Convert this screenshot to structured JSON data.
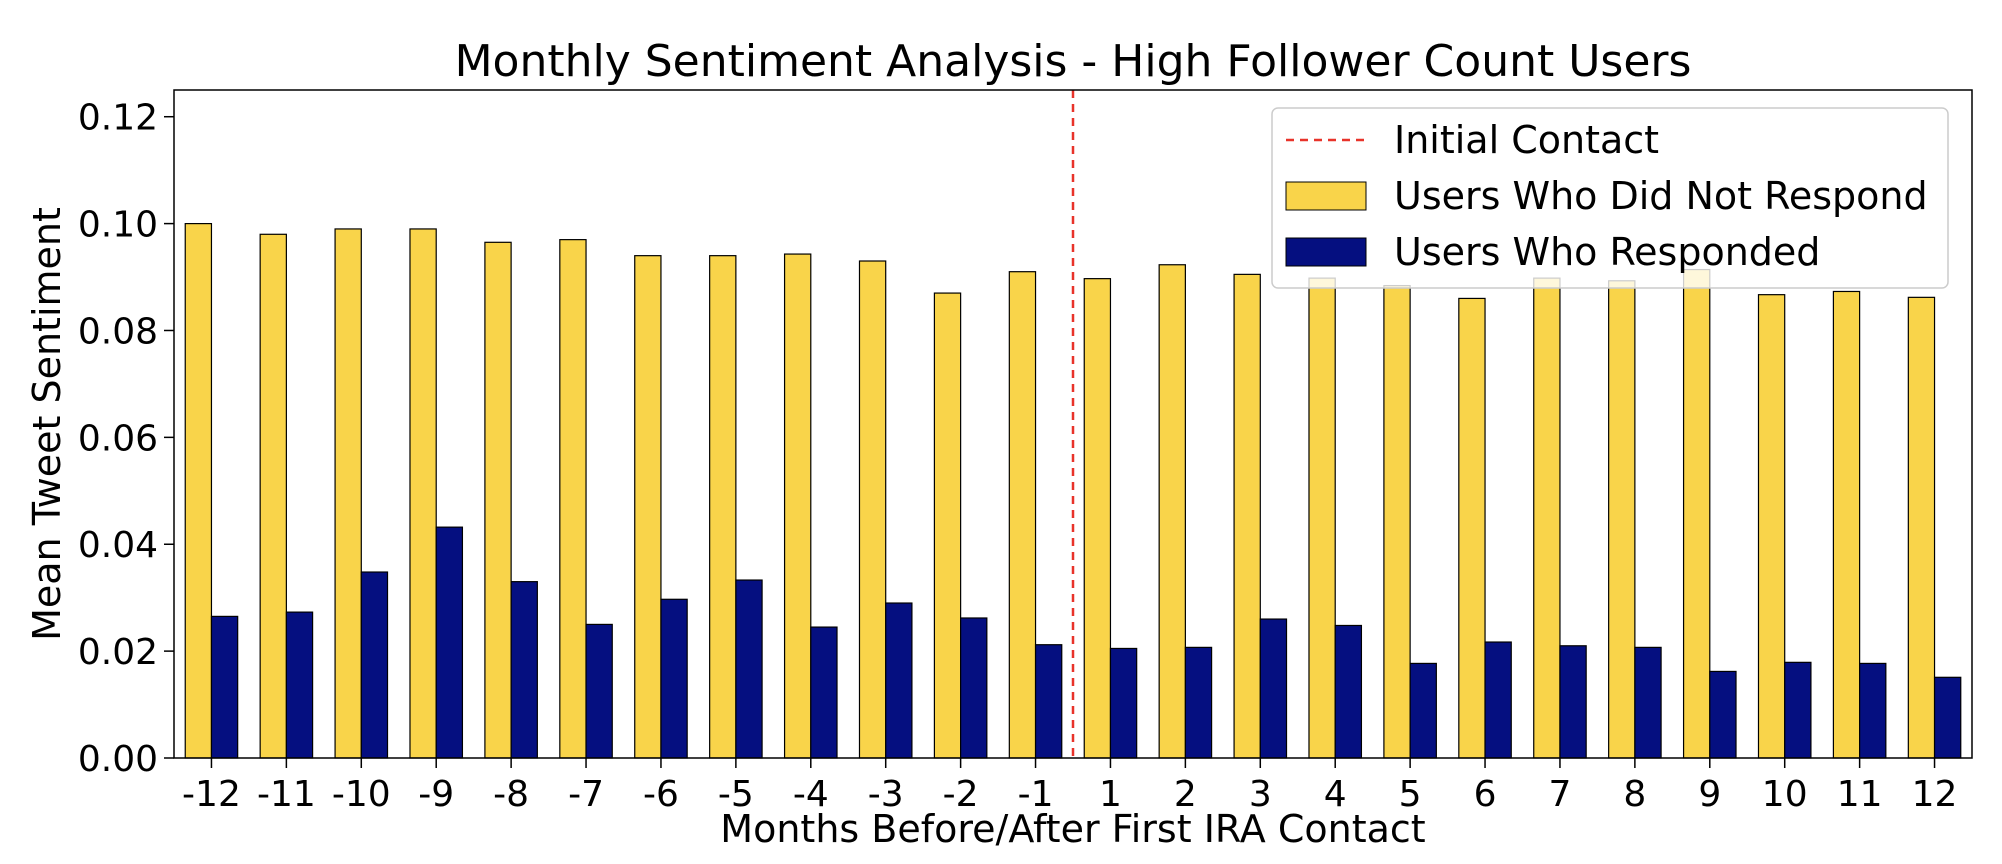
{
  "chart_data": {
    "type": "bar",
    "title": "Monthly Sentiment Analysis - High Follower Count Users",
    "xlabel": "Months Before/After First IRA Contact",
    "ylabel": "Mean Tweet Sentiment",
    "ylim": [
      0,
      0.125
    ],
    "yticks": [
      "0.00",
      "0.02",
      "0.04",
      "0.06",
      "0.08",
      "0.10",
      "0.12"
    ],
    "ytick_values": [
      0,
      0.02,
      0.04,
      0.06,
      0.08,
      0.1,
      0.12
    ],
    "categories": [
      "-12",
      "-11",
      "-10",
      "-9",
      "-8",
      "-7",
      "-6",
      "-5",
      "-4",
      "-3",
      "-2",
      "-1",
      "1",
      "2",
      "3",
      "4",
      "5",
      "6",
      "7",
      "8",
      "9",
      "10",
      "11",
      "12"
    ],
    "series": [
      {
        "name": "Users Who Did Not Respond",
        "color": "#f9d44a",
        "values": [
          0.1,
          0.098,
          0.099,
          0.099,
          0.0965,
          0.097,
          0.094,
          0.094,
          0.0943,
          0.093,
          0.087,
          0.091,
          0.0897,
          0.0923,
          0.0905,
          0.0898,
          0.0884,
          0.086,
          0.0898,
          0.0893,
          0.0914,
          0.0867,
          0.0873,
          0.0862
        ]
      },
      {
        "name": "Users Who Responded",
        "color": "#050f80",
        "values": [
          0.0265,
          0.0273,
          0.0348,
          0.0432,
          0.033,
          0.025,
          0.0297,
          0.0333,
          0.0245,
          0.029,
          0.0262,
          0.0212,
          0.0205,
          0.0207,
          0.026,
          0.0248,
          0.0177,
          0.0217,
          0.021,
          0.0207,
          0.0162,
          0.0179,
          0.0177,
          0.0151
        ]
      }
    ],
    "reference_line": {
      "name": "Initial Contact",
      "color": "#e8332a",
      "style": "dashed",
      "position": "between -1 and 1"
    },
    "grid": false,
    "legend_position": "top-right"
  }
}
